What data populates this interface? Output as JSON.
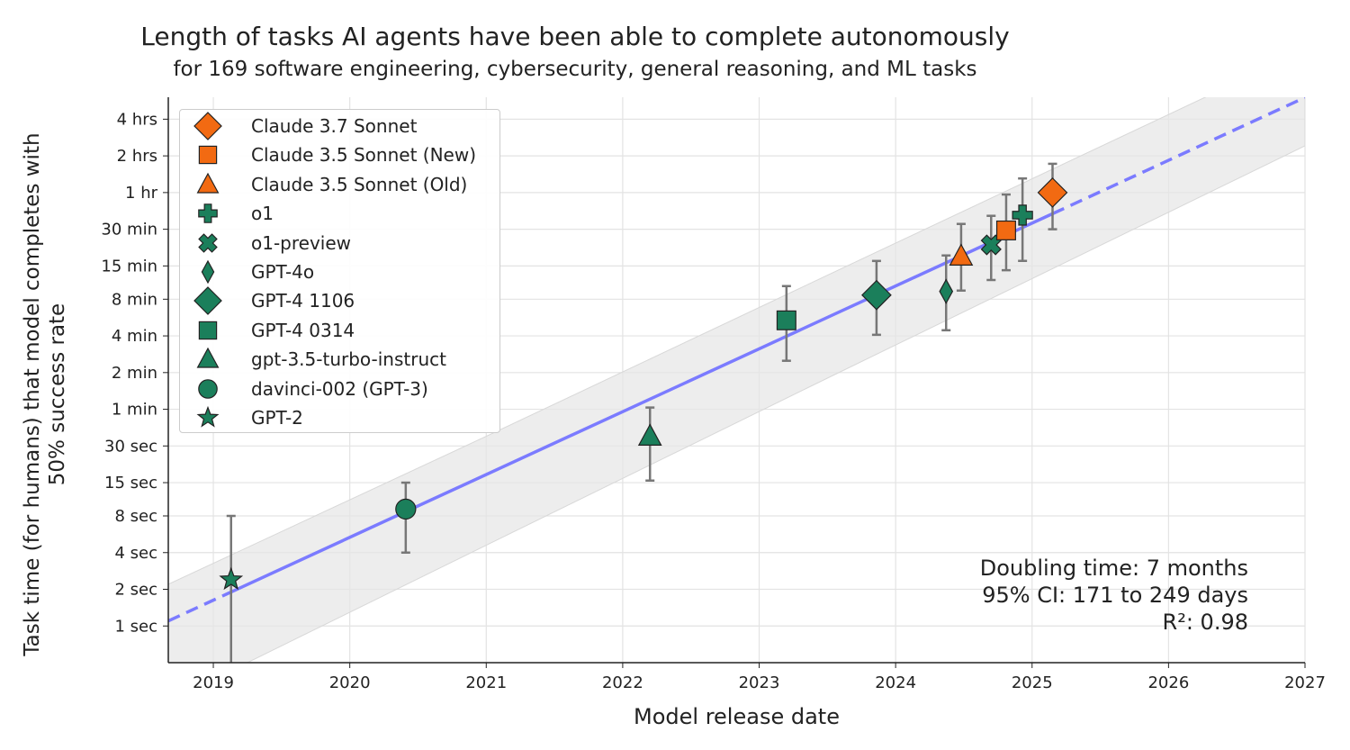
{
  "chart_data": {
    "type": "scatter",
    "title": "Length of tasks AI agents have been able to complete autonomously",
    "subtitle": "for 169 software engineering, cybersecurity, general reasoning, and ML tasks",
    "xlabel": "Model release date",
    "ylabel_line1": "Task time (for humans) that model completes with",
    "ylabel_line2": "50% success rate",
    "x_scale": "date (years)",
    "y_scale": "log2",
    "xlim": [
      2018.67,
      2027.0
    ],
    "ylim_seconds": [
      0.5,
      21800
    ],
    "grid": true,
    "legend_position": "top-left",
    "x_ticks": [
      {
        "value": 2019,
        "label": "2019"
      },
      {
        "value": 2020,
        "label": "2020"
      },
      {
        "value": 2021,
        "label": "2021"
      },
      {
        "value": 2022,
        "label": "2022"
      },
      {
        "value": 2023,
        "label": "2023"
      },
      {
        "value": 2024,
        "label": "2024"
      },
      {
        "value": 2025,
        "label": "2025"
      },
      {
        "value": 2026,
        "label": "2026"
      },
      {
        "value": 2027,
        "label": "2027"
      }
    ],
    "y_ticks": [
      {
        "value": 1,
        "label": "1 sec"
      },
      {
        "value": 2,
        "label": "2 sec"
      },
      {
        "value": 4,
        "label": "4 sec"
      },
      {
        "value": 8,
        "label": "8 sec"
      },
      {
        "value": 15,
        "label": "15 sec"
      },
      {
        "value": 30,
        "label": "30 sec"
      },
      {
        "value": 60,
        "label": "1 min"
      },
      {
        "value": 120,
        "label": "2 min"
      },
      {
        "value": 240,
        "label": "4 min"
      },
      {
        "value": 480,
        "label": "8 min"
      },
      {
        "value": 900,
        "label": "15 min"
      },
      {
        "value": 1800,
        "label": "30 min"
      },
      {
        "value": 3600,
        "label": "1 hr"
      },
      {
        "value": 7200,
        "label": "2 hrs"
      },
      {
        "value": 14400,
        "label": "4 hrs"
      }
    ],
    "colors": {
      "anthropic": "#F26A12",
      "other": "#1B7F5B",
      "fit": "#7B7BFF",
      "band": "#E6E6E6"
    },
    "series": [
      {
        "name": "Claude 3.7 Sonnet",
        "marker": "diamond",
        "color_key": "anthropic",
        "date": 2025.15,
        "seconds": 3600,
        "ci": [
          1800,
          6200
        ]
      },
      {
        "name": "Claude 3.5 Sonnet (New)",
        "marker": "square",
        "color_key": "anthropic",
        "date": 2024.81,
        "seconds": 1760,
        "ci": [
          830,
          3470
        ]
      },
      {
        "name": "Claude 3.5 Sonnet (Old)",
        "marker": "triangle",
        "color_key": "anthropic",
        "date": 2024.48,
        "seconds": 1080,
        "ci": [
          565,
          1990
        ]
      },
      {
        "name": "o1",
        "marker": "plus",
        "color_key": "other",
        "date": 2024.93,
        "seconds": 2350,
        "ci": [
          990,
          4700
        ]
      },
      {
        "name": "o1-preview",
        "marker": "x",
        "color_key": "other",
        "date": 2024.7,
        "seconds": 1340,
        "ci": [
          690,
          2320
        ]
      },
      {
        "name": "GPT-4o",
        "marker": "thin_diamond",
        "color_key": "other",
        "date": 2024.37,
        "seconds": 556,
        "ci": [
          267,
          1097
        ]
      },
      {
        "name": "GPT-4 1106",
        "marker": "diamond",
        "color_key": "other",
        "date": 2023.86,
        "seconds": 519,
        "ci": [
          245,
          989
        ]
      },
      {
        "name": "GPT-4 0314",
        "marker": "square",
        "color_key": "other",
        "date": 2023.2,
        "seconds": 322,
        "ci": [
          150,
          615
        ]
      },
      {
        "name": "gpt-3.5-turbo-instruct",
        "marker": "triangle",
        "color_key": "other",
        "date": 2022.2,
        "seconds": 36,
        "ci": [
          15.6,
          62
        ]
      },
      {
        "name": "davinci-002 (GPT-3)",
        "marker": "circle",
        "color_key": "other",
        "date": 2020.41,
        "seconds": 9.1,
        "ci": [
          4,
          15
        ]
      },
      {
        "name": "GPT-2",
        "marker": "star",
        "color_key": "other",
        "date": 2019.13,
        "seconds": 2.4,
        "ci": [
          0.3,
          8
        ]
      }
    ],
    "fit": {
      "points": [
        [
          2018.67,
          1.1
        ],
        [
          2027.0,
          21700
        ]
      ],
      "solid_range": [
        2019.13,
        2025.15
      ]
    },
    "confidence_band": [
      [
        2018.67,
        0.24,
        2.2
      ],
      [
        2021.0,
        4.6,
        36
      ],
      [
        2023.5,
        108,
        755
      ],
      [
        2027.0,
        8700,
        53000
      ]
    ],
    "annotations": {
      "doubling": "Doubling time: 7 months",
      "ci": "95% CI: 171 to 249 days",
      "r2": "R²: 0.98"
    }
  }
}
